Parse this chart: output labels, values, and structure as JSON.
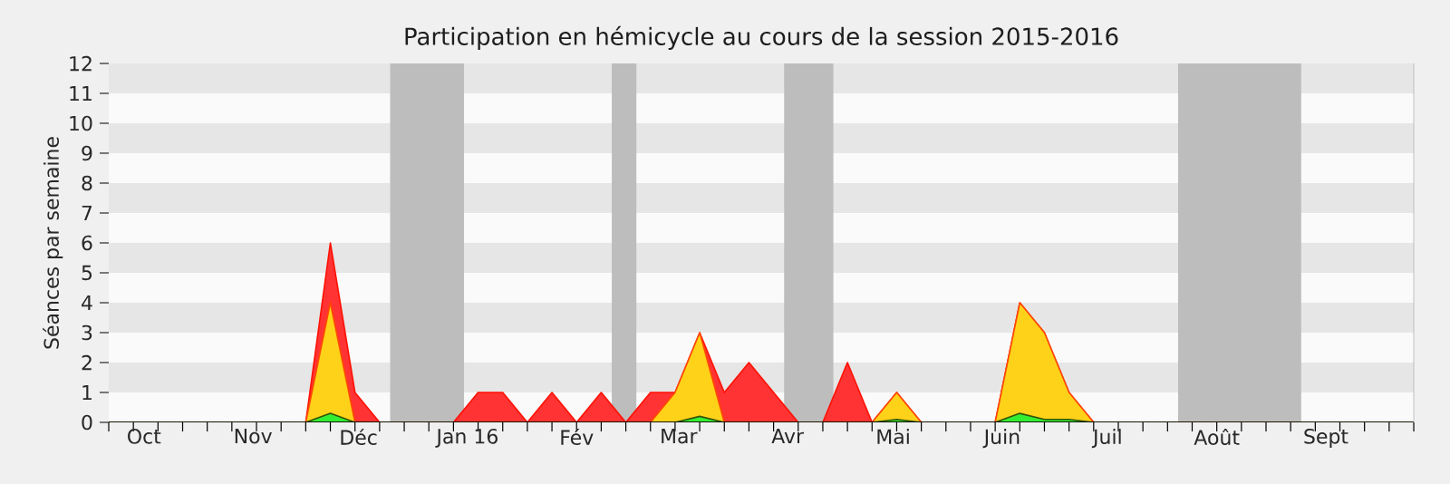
{
  "chart_data": {
    "type": "area",
    "title": "Participation en hémicycle au cours de la session 2015-2016",
    "ylabel": "Séances par semaine",
    "x": [
      "2015-09-21",
      "2015-09-28",
      "2015-10-05",
      "2015-10-12",
      "2015-10-19",
      "2015-10-26",
      "2015-11-02",
      "2015-11-09",
      "2015-11-16",
      "2015-11-23",
      "2015-11-30",
      "2015-12-07",
      "2015-12-14",
      "2015-12-21",
      "2015-12-28",
      "2016-01-04",
      "2016-01-11",
      "2016-01-18",
      "2016-01-25",
      "2016-02-01",
      "2016-02-08",
      "2016-02-15",
      "2016-02-22",
      "2016-02-29",
      "2016-03-07",
      "2016-03-14",
      "2016-03-21",
      "2016-03-28",
      "2016-04-04",
      "2016-04-11",
      "2016-04-18",
      "2016-04-25",
      "2016-05-02",
      "2016-05-09",
      "2016-05-16",
      "2016-05-23",
      "2016-05-30",
      "2016-06-06",
      "2016-06-13",
      "2016-06-20",
      "2016-06-27",
      "2016-07-04",
      "2016-07-11",
      "2016-07-18",
      "2016-07-25",
      "2016-08-01",
      "2016-08-08",
      "2016-08-15",
      "2016-08-22",
      "2016-08-29",
      "2016-09-05",
      "2016-09-12",
      "2016-09-19",
      "2016-09-26"
    ],
    "series": [
      {
        "color": "#ff3333",
        "values": [
          0,
          0,
          0,
          0,
          0,
          0,
          0,
          0,
          0,
          6,
          1,
          0,
          0,
          0,
          0,
          1,
          1,
          0,
          1,
          0,
          1,
          0,
          1,
          1,
          3,
          1,
          2,
          1,
          0,
          0,
          2,
          0,
          1,
          0,
          0,
          0,
          0,
          4,
          3,
          1,
          0,
          0,
          0,
          0,
          0,
          0,
          0,
          0,
          0,
          0,
          0,
          0,
          0,
          0
        ]
      },
      {
        "color": "#ffd21a",
        "values": [
          0,
          0,
          0,
          0,
          0,
          0,
          0,
          0,
          0,
          4,
          0,
          0,
          0,
          0,
          0,
          0,
          0,
          0,
          0,
          0,
          0,
          0,
          0,
          1,
          3,
          0,
          0,
          0,
          0,
          0,
          0,
          0,
          1,
          0,
          0,
          0,
          0,
          4,
          3,
          1,
          0,
          0,
          0,
          0,
          0,
          0,
          0,
          0,
          0,
          0,
          0,
          0,
          0,
          0
        ]
      },
      {
        "color": "#33ee33",
        "values": [
          0,
          0,
          0,
          0,
          0,
          0,
          0,
          0,
          0,
          0.3,
          0,
          0,
          0,
          0,
          0,
          0,
          0,
          0,
          0,
          0,
          0,
          0,
          0,
          0,
          0.2,
          0,
          0,
          0,
          0,
          0,
          0,
          0,
          0.1,
          0,
          0,
          0,
          0,
          0.3,
          0.1,
          0.1,
          0,
          0,
          0,
          0,
          0,
          0,
          0,
          0,
          0,
          0,
          0,
          0,
          0,
          0
        ]
      }
    ],
    "xlim": [
      "2015-09-21",
      "2016-09-26"
    ],
    "xticks": [
      {
        "value": "2015-10-01",
        "label": "Oct"
      },
      {
        "value": "2015-11-01",
        "label": "Nov"
      },
      {
        "value": "2015-12-01",
        "label": "Déc"
      },
      {
        "value": "2016-01-01",
        "label": "Jan 16"
      },
      {
        "value": "2016-02-01",
        "label": "Fév"
      },
      {
        "value": "2016-03-01",
        "label": "Mar"
      },
      {
        "value": "2016-04-01",
        "label": "Avr"
      },
      {
        "value": "2016-05-01",
        "label": "Mai"
      },
      {
        "value": "2016-06-01",
        "label": "Juin"
      },
      {
        "value": "2016-07-01",
        "label": "Juil"
      },
      {
        "value": "2016-08-01",
        "label": "Août"
      },
      {
        "value": "2016-09-01",
        "label": "Sept"
      }
    ],
    "ylim": [
      0,
      12
    ],
    "yticks": [
      0,
      1,
      2,
      3,
      4,
      5,
      6,
      7,
      8,
      9,
      10,
      11,
      12
    ],
    "bands": [
      {
        "axis": "x",
        "from": "2015-12-10",
        "to": "2015-12-31",
        "color": "#bdbdbd"
      },
      {
        "axis": "x",
        "from": "2016-02-11",
        "to": "2016-02-18",
        "color": "#bdbdbd"
      },
      {
        "axis": "x",
        "from": "2016-03-31",
        "to": "2016-04-14",
        "color": "#bdbdbd"
      },
      {
        "axis": "x",
        "from": "2016-07-21",
        "to": "2016-08-25",
        "color": "#bdbdbd"
      }
    ]
  }
}
